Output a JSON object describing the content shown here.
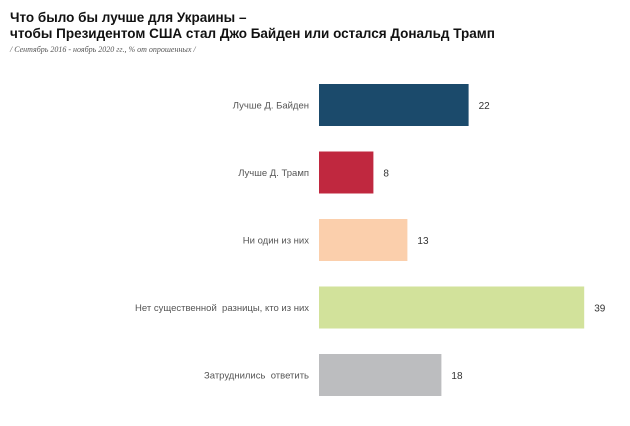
{
  "title_lines": [
    "Что было бы лучше для Украины –",
    "чтобы Президентом США стал Джо Байден или остался Дональд Трамп"
  ],
  "subtitle": "/ Сентябрь 2016 - ноябрь 2020 гг., % от опрошенных /",
  "chart_data": {
    "type": "bar",
    "orientation": "horizontal",
    "title": "Что было бы лучше для Украины – чтобы Президентом США стал Джо Байден или остался Дональд Трамп",
    "subtitle": "/ Сентябрь 2016 - ноябрь 2020 гг., % от опрошенных /",
    "categories": [
      "Лучше Д. Байден",
      "Лучше Д. Трамп",
      "Ни один из них",
      "Нет существенной  разницы, кто из них",
      "Затруднились  ответить"
    ],
    "values": [
      22,
      8,
      13,
      39,
      18
    ],
    "colors": [
      "#1b4a6b",
      "#c0283f",
      "#fbcfac",
      "#d2e29b",
      "#bcbdbf"
    ],
    "xlim": [
      0,
      40
    ],
    "grid": false,
    "data_labels": true
  }
}
